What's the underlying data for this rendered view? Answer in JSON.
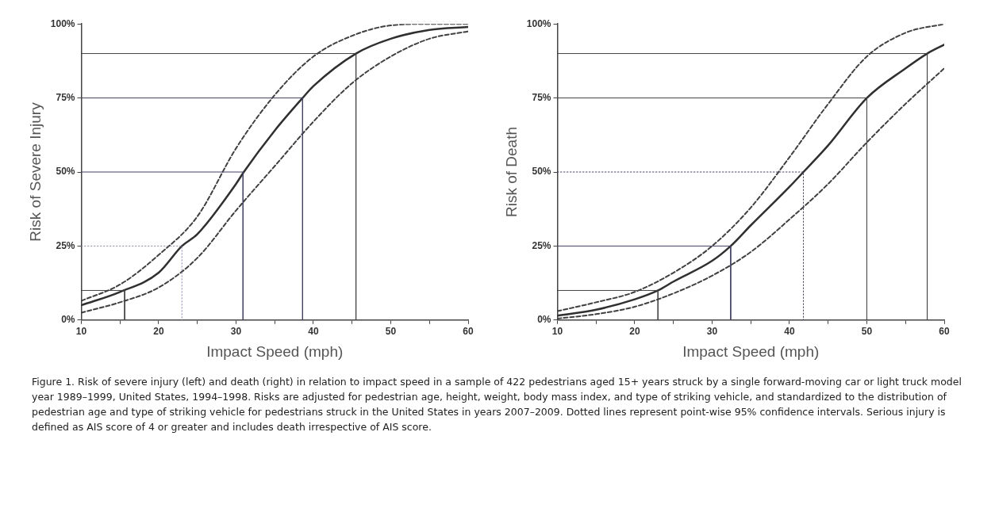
{
  "chart_data": [
    {
      "type": "line",
      "ylabel": "Risk of Severe Injury",
      "xlabel": "Impact Speed (mph)",
      "xlim": [
        10,
        60
      ],
      "xticks": [
        10,
        {
          "value": 15,
          "label": null
        },
        20,
        {
          "value": 25,
          "label": null
        },
        30,
        {
          "value": 35,
          "label": null
        },
        40,
        {
          "value": 45,
          "label": null
        },
        50,
        {
          "value": 55,
          "label": null
        },
        60
      ],
      "ylim": [
        0,
        100
      ],
      "yticks": [
        {
          "value": 0,
          "label": "0%"
        },
        {
          "value": 25,
          "label": "25%"
        },
        {
          "value": 50,
          "label": "50%"
        },
        {
          "value": 75,
          "label": "75%"
        },
        {
          "value": 100,
          "label": "100%"
        }
      ],
      "series": [
        {
          "type": "line",
          "color": "#404040",
          "line_style": "solid",
          "x": [
            10,
            15.6,
            15.6
          ],
          "values": [
            10,
            10,
            0
          ]
        },
        {
          "type": "line",
          "color": "#9090b0",
          "line_style": "dotted",
          "x": [
            10,
            23,
            23
          ],
          "values": [
            25,
            25,
            0
          ]
        },
        {
          "type": "line",
          "color": "#404060",
          "line_style": "solid",
          "x": [
            10,
            30.9,
            30.9
          ],
          "values": [
            50,
            50,
            0
          ]
        },
        {
          "type": "line",
          "color": "#404060",
          "line_style": "solid",
          "x": [
            10,
            38.6,
            38.6
          ],
          "values": [
            75,
            75,
            0
          ]
        },
        {
          "type": "line",
          "color": "#404040",
          "line_style": "solid",
          "x": [
            10,
            45.5,
            45.5
          ],
          "values": [
            90,
            90,
            0
          ]
        },
        {
          "type": "line",
          "color": "#404040",
          "line_style": "dashed",
          "x": [
            10,
            15,
            20,
            25,
            30,
            35,
            40,
            45,
            50,
            55,
            60
          ],
          "values": [
            6.5,
            12,
            22,
            35,
            58,
            76,
            89,
            96,
            99.5,
            100,
            100
          ]
        },
        {
          "type": "line",
          "color": "#404040",
          "line_style": "dashed",
          "x": [
            10,
            15,
            20,
            25,
            30,
            35,
            40,
            45,
            50,
            55,
            60
          ],
          "values": [
            2.5,
            6,
            11,
            21,
            37,
            52,
            67,
            80,
            89,
            95,
            97.5
          ]
        },
        {
          "type": "line",
          "color": "#303030",
          "line_style": "solid",
          "x": [
            10,
            15,
            20,
            23,
            25,
            30,
            31,
            35,
            38.6,
            40,
            45.5,
            50,
            55,
            60
          ],
          "values": [
            5,
            9.5,
            16,
            25,
            29,
            46,
            50,
            64,
            75,
            79,
            90,
            95,
            98,
            99
          ]
        }
      ],
      "annotations": [
        "Figure 1. Risk of severe injury (left) and death (right) in relation to impact speed in a sample of 422 pedestrians aged 15+ years struck by a single forward-moving car or light truck model year 1989–1999, United States, 1994–1998. Risks are adjusted for pedestrian age, height, weight, body mass index, and type of striking vehicle, and standardized to the distribution of pedestrian age and type of striking vehicle for pedestrians struck in the United States in years 2007–2009. Dotted lines represent point-wise 95% confidence intervals. Serious injury is defined as AIS score of 4 or greater and includes death irrespective of AIS score."
      ]
    },
    {
      "type": "line",
      "ylabel": "Risk of Death",
      "xlabel": "Impact Speed (mph)",
      "xlim": [
        10,
        60
      ],
      "xticks": [
        10,
        {
          "value": 15,
          "label": null
        },
        20,
        {
          "value": 25,
          "label": null
        },
        30,
        {
          "value": 35,
          "label": null
        },
        40,
        {
          "value": 45,
          "label": null
        },
        50,
        {
          "value": 55,
          "label": null
        },
        60
      ],
      "ylim": [
        0,
        100
      ],
      "yticks": [
        {
          "value": 0,
          "label": "0%"
        },
        {
          "value": 25,
          "label": "25%"
        },
        {
          "value": 50,
          "label": "50%"
        },
        {
          "value": 75,
          "label": "75%"
        },
        {
          "value": 100,
          "label": "100%"
        }
      ],
      "series": [
        {
          "type": "line",
          "color": "#404040",
          "line_style": "solid",
          "x": [
            10,
            23,
            23
          ],
          "values": [
            10,
            10,
            0
          ]
        },
        {
          "type": "line",
          "color": "#404060",
          "line_style": "solid",
          "x": [
            10,
            32.4,
            32.4
          ],
          "values": [
            25,
            25,
            0
          ]
        },
        {
          "type": "line",
          "color": "#404060",
          "line_style": "dotted",
          "x": [
            10,
            41.8,
            41.8
          ],
          "values": [
            50,
            50,
            0
          ]
        },
        {
          "type": "line",
          "color": "#404040",
          "line_style": "solid",
          "x": [
            10,
            50,
            50
          ],
          "values": [
            75,
            75,
            0
          ]
        },
        {
          "type": "line",
          "color": "#404040",
          "line_style": "solid",
          "x": [
            10,
            57.8,
            57.8
          ],
          "values": [
            90,
            90,
            0
          ]
        },
        {
          "type": "line",
          "color": "#404040",
          "line_style": "dashed",
          "x": [
            10,
            15,
            20,
            25,
            30,
            35,
            40,
            45,
            50,
            55,
            60
          ],
          "values": [
            3,
            6,
            9.5,
            16,
            25,
            38,
            55,
            73,
            89,
            97,
            100
          ]
        },
        {
          "type": "line",
          "color": "#404040",
          "line_style": "dashed",
          "x": [
            10,
            15,
            20,
            25,
            30,
            35,
            40,
            45,
            50,
            55,
            60
          ],
          "values": [
            0.5,
            2,
            4.5,
            9,
            15,
            23,
            34,
            46,
            60,
            73,
            85
          ]
        },
        {
          "type": "line",
          "color": "#303030",
          "line_style": "solid",
          "x": [
            10,
            15,
            20,
            23,
            25,
            30,
            32.4,
            35,
            40,
            41.8,
            45,
            50,
            55,
            57.8,
            60
          ],
          "values": [
            1.5,
            3.5,
            7,
            10,
            13,
            20,
            25,
            32,
            45,
            50,
            59,
            75,
            85,
            90,
            93
          ]
        }
      ]
    }
  ]
}
